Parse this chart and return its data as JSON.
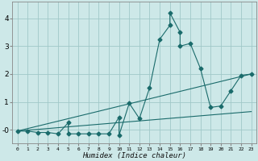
{
  "xlabel": "Humidex (Indice chaleur)",
  "bg_color": "#cde8e8",
  "grid_color": "#a0c8c8",
  "line_color": "#1a6b6b",
  "xlim": [
    -0.5,
    23.5
  ],
  "ylim": [
    -0.5,
    4.6
  ],
  "xticks": [
    0,
    1,
    2,
    3,
    4,
    5,
    6,
    7,
    8,
    9,
    10,
    11,
    12,
    13,
    14,
    15,
    16,
    17,
    18,
    19,
    20,
    21,
    22,
    23
  ],
  "yticks": [
    0,
    1,
    2,
    3,
    4
  ],
  "ytick_labels": [
    "-0",
    "1",
    "2",
    "3",
    "4"
  ],
  "series1_x": [
    0,
    1,
    2,
    3,
    4,
    5,
    5,
    6,
    7,
    8,
    9,
    10,
    10,
    11,
    12,
    13,
    14,
    15,
    15,
    16,
    16,
    17,
    18,
    19,
    20,
    21,
    22,
    23
  ],
  "series1_y": [
    -0.05,
    -0.05,
    -0.1,
    -0.1,
    -0.15,
    0.25,
    -0.15,
    -0.15,
    -0.15,
    -0.15,
    -0.15,
    0.45,
    -0.2,
    0.95,
    0.4,
    1.5,
    3.25,
    3.75,
    4.2,
    3.5,
    3.0,
    3.1,
    2.2,
    0.8,
    0.85,
    1.4,
    1.95,
    2.0
  ],
  "series2_x": [
    0,
    23
  ],
  "series2_y": [
    -0.05,
    2.0
  ],
  "series3_x": [
    0,
    23
  ],
  "series3_y": [
    -0.05,
    0.65
  ],
  "marker": "D",
  "marker_size": 2.5
}
